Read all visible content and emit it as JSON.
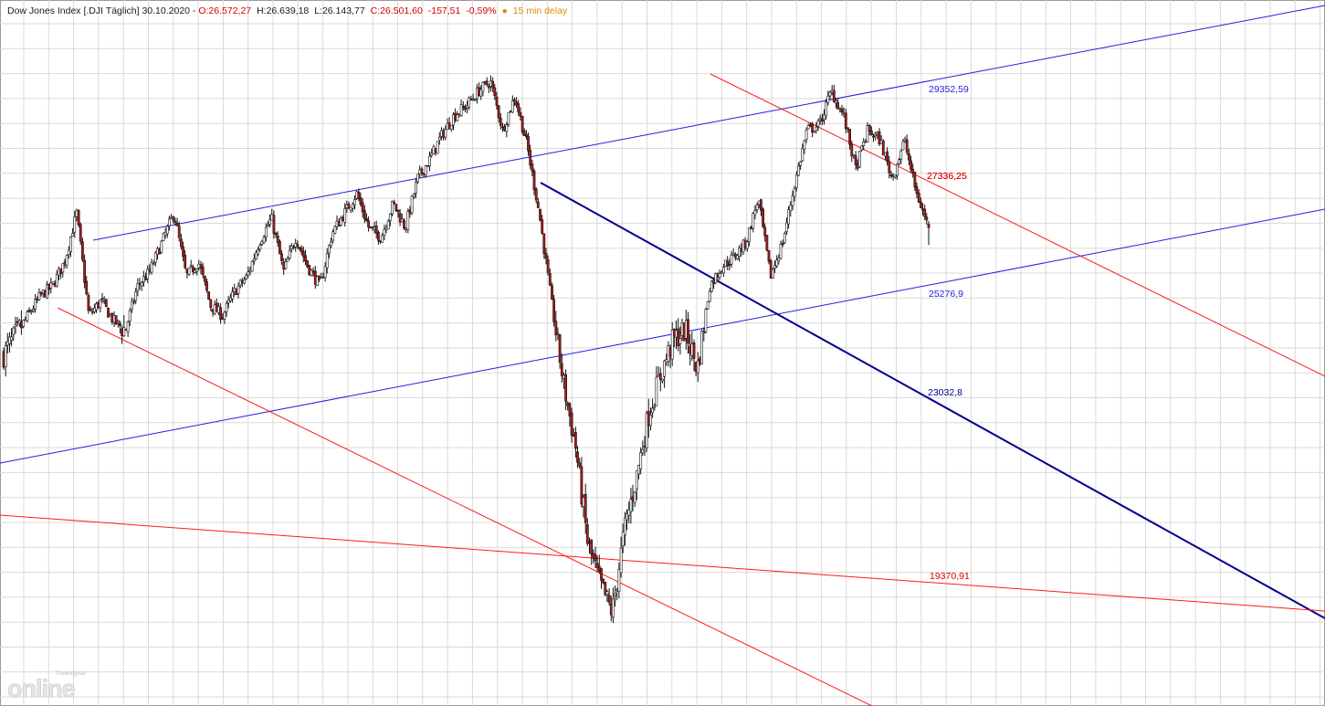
{
  "header": {
    "instrument": "Dow Jones Index [.DJI Täglich] 30.10.2020 -",
    "open": "O:26.572,27",
    "high": "H:26.639,18",
    "low": "L:26.143,77",
    "close": "C:26.501,60",
    "change": "-157,51",
    "change_pct": "-0,59%",
    "bullet": "●",
    "delay": "15 min delay"
  },
  "colors": {
    "header_text": "#1a1a1a",
    "header_red": "#d40000",
    "header_delay": "#e08a00",
    "grid": "#d9d9d9",
    "frame": "#9a9a9a",
    "blue_line": "#1f1fe0",
    "navy_line": "#00008b",
    "red_line": "#ff1a1a",
    "candle_up": "#ffffff",
    "candle_down": "#b01818",
    "wick": "#111111"
  },
  "chart_data": {
    "type": "candlestick",
    "series": [
      {
        "name": "Dow Jones Index [.DJI Täglich]",
        "last_bar": {
          "date": "30.10.2020",
          "open": 26572.27,
          "high": 26639.18,
          "low": 26143.77,
          "close": 26501.6,
          "change": -157.51,
          "change_pct": -0.59
        }
      }
    ],
    "path_anchors_price": [
      23900,
      24300,
      24700,
      25100,
      25300,
      25800,
      26800,
      24700,
      25000,
      24600,
      24400,
      25300,
      25600,
      26200,
      26800,
      25500,
      25800,
      24900,
      24700,
      25200,
      25500,
      26200,
      26700,
      25600,
      26300,
      25700,
      25300,
      26400,
      26800,
      27200,
      26500,
      26300,
      27000,
      26500,
      27500,
      27900,
      28400,
      28800,
      29000,
      29300,
      29500,
      28500,
      29200,
      28200,
      26800,
      25000,
      23300,
      22000,
      20000,
      19200,
      18600,
      20300,
      21400,
      22700,
      23500,
      24200,
      24400,
      23600,
      25300,
      25700,
      25900,
      26200,
      27100,
      25500,
      26200,
      27400,
      28500,
      28600,
      29300,
      28800,
      27700,
      28500,
      28300,
      27500,
      28300,
      27200,
      26500
    ],
    "annotations": [
      {
        "label": "29352,59",
        "color": "blue"
      },
      {
        "label": "27336,25",
        "color": "red"
      },
      {
        "label": "27336,25",
        "color": "red"
      },
      {
        "label": "25276,9",
        "color": "blue"
      },
      {
        "label": "23032,8",
        "color": "navy"
      },
      {
        "label": "19370,91",
        "color": "red"
      }
    ],
    "trendlines": [
      {
        "name": "blue-channel-upper",
        "color": "blue"
      },
      {
        "name": "blue-channel-lower",
        "color": "blue"
      },
      {
        "name": "navy-downtrend",
        "color": "navy"
      },
      {
        "name": "red-downtrend-upper",
        "color": "red"
      },
      {
        "name": "red-downtrend-lower",
        "color": "red"
      },
      {
        "name": "red-support",
        "color": "red"
      }
    ],
    "grid": true,
    "legend": "none"
  },
  "logo": {
    "small_text": "Tradesignal",
    "big_text": "online"
  }
}
